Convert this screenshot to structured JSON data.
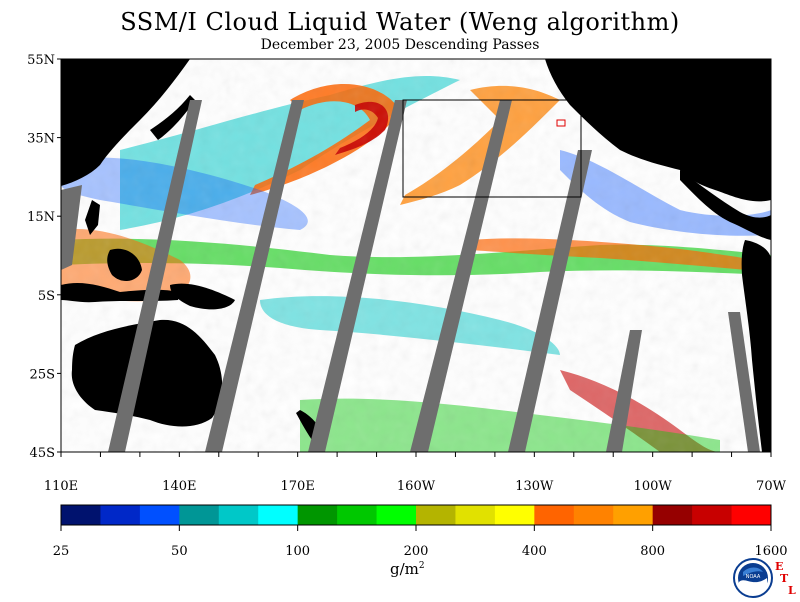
{
  "title": "SSM/I Cloud Liquid Water (Weng algorithm)",
  "subtitle": "December 23, 2005   Descending Passes",
  "map": {
    "lat_labels": [
      "55N",
      "35N",
      "15N",
      "5S",
      "25S",
      "45S"
    ],
    "lon_labels": [
      "110E",
      "140E",
      "170E",
      "160W",
      "130W",
      "100W",
      "70W"
    ],
    "colors": {
      "ocean_clear": "#ffffff",
      "land": "#000000",
      "no_data_gap": "#6e6e6e"
    }
  },
  "colorbar": {
    "colors": [
      "#00126e",
      "#0028c8",
      "#0050ff",
      "#009696",
      "#00c8c8",
      "#00ffff",
      "#009600",
      "#00c800",
      "#00ff00",
      "#b4b400",
      "#e1e100",
      "#ffff00",
      "#ff6400",
      "#ff8200",
      "#ffa000",
      "#960000",
      "#c80000",
      "#ff0000"
    ],
    "tick_labels": [
      "25",
      "50",
      "100",
      "200",
      "400",
      "800",
      "1600"
    ],
    "units": "g/m",
    "units_sup": "2"
  },
  "logo": {
    "noaa_text": "NOAA",
    "etl_letters": [
      "E",
      "T",
      "L"
    ]
  }
}
